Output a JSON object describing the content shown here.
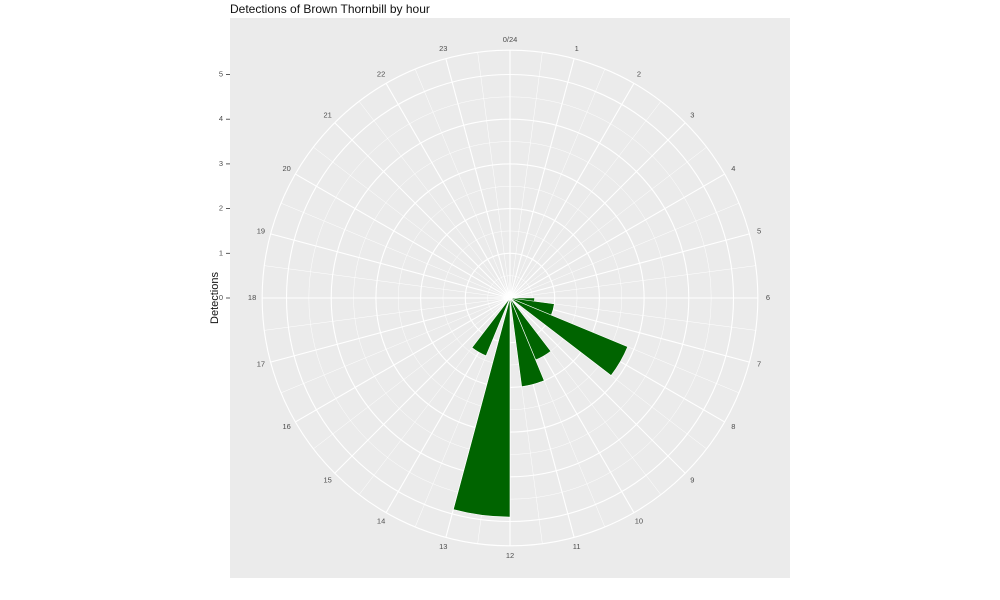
{
  "chart_data": {
    "type": "bar",
    "coord": "polar",
    "title": "Detections of Brown Thornbill by hour",
    "xlabel": "",
    "ylabel": "Detections",
    "x_tick_labels": [
      "0/24",
      "1",
      "2",
      "3",
      "4",
      "5",
      "6",
      "7",
      "8",
      "9",
      "10",
      "11",
      "12",
      "13",
      "14",
      "15",
      "16",
      "17",
      "18",
      "19",
      "20",
      "21",
      "22",
      "23"
    ],
    "y_tick_labels": [
      "0",
      "1",
      "2",
      "3",
      "4",
      "5"
    ],
    "ylim": [
      0,
      5.5
    ],
    "bar_color": "#006400",
    "panel_color": "#EBEBEB",
    "grid_color": "#FFFFFF",
    "bars": [
      {
        "hour": 6.5,
        "value": 0.55
      },
      {
        "hour": 7,
        "value": 1.0
      },
      {
        "hour": 8,
        "value": 2.85
      },
      {
        "hour": 10,
        "value": 1.5
      },
      {
        "hour": 11,
        "value": 2.0
      },
      {
        "hour": 12.5,
        "value": 4.9
      },
      {
        "hour": 14,
        "value": 1.4
      }
    ]
  }
}
